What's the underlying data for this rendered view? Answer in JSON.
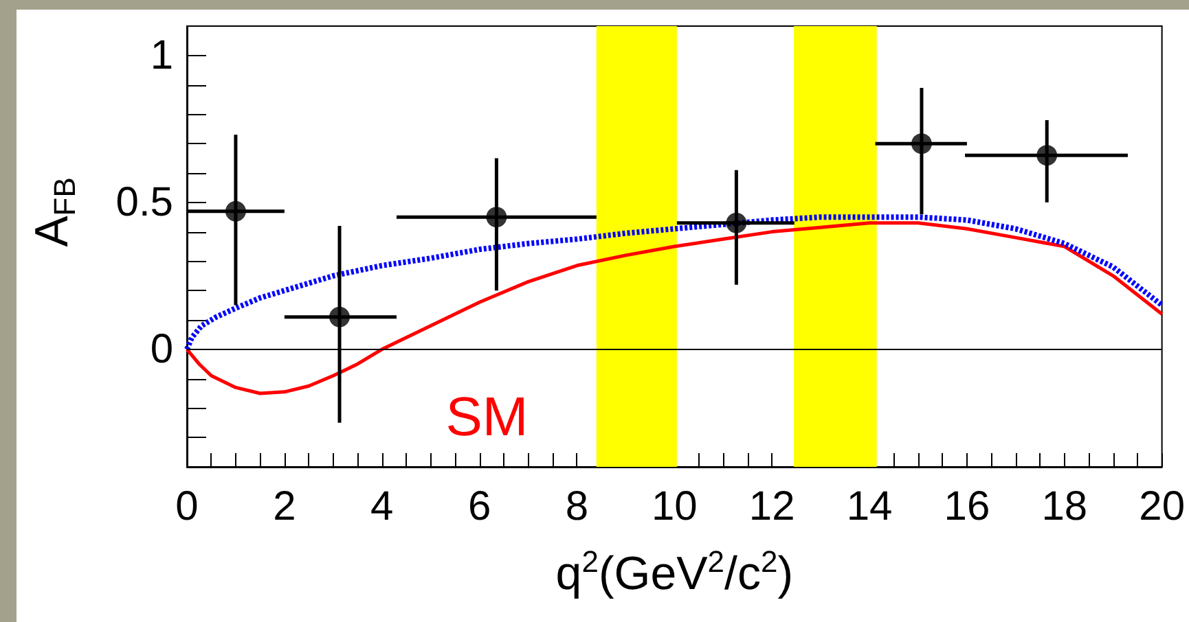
{
  "chart_data": {
    "type": "scatter",
    "xlabel": "q$^{2}$(GeV$^{2}$/c$^{2}$)",
    "ylabel": "A$_{FB}$",
    "xlim": [
      0,
      20
    ],
    "ylim": [
      -0.4,
      1.1
    ],
    "xticks": [
      0,
      {
        "value": 0.5,
        "label": null
      },
      {
        "value": 1,
        "label": null
      },
      {
        "value": 1.5,
        "label": null
      },
      2,
      {
        "value": 2.5,
        "label": null
      },
      {
        "value": 3,
        "label": null
      },
      {
        "value": 3.5,
        "label": null
      },
      4,
      {
        "value": 4.5,
        "label": null
      },
      {
        "value": 5,
        "label": null
      },
      {
        "value": 5.5,
        "label": null
      },
      6,
      {
        "value": 6.5,
        "label": null
      },
      {
        "value": 7,
        "label": null
      },
      {
        "value": 7.5,
        "label": null
      },
      8,
      {
        "value": 8.5,
        "label": null
      },
      {
        "value": 9,
        "label": null
      },
      {
        "value": 9.5,
        "label": null
      },
      10,
      {
        "value": 10.5,
        "label": null
      },
      {
        "value": 11,
        "label": null
      },
      {
        "value": 11.5,
        "label": null
      },
      12,
      {
        "value": 12.5,
        "label": null
      },
      {
        "value": 13,
        "label": null
      },
      {
        "value": 13.5,
        "label": null
      },
      14,
      {
        "value": 14.5,
        "label": null
      },
      {
        "value": 15,
        "label": null
      },
      {
        "value": 15.5,
        "label": null
      },
      16,
      {
        "value": 16.5,
        "label": null
      },
      {
        "value": 17,
        "label": null
      },
      {
        "value": 17.5,
        "label": null
      },
      18,
      {
        "value": 18.5,
        "label": null
      },
      {
        "value": 19,
        "label": null
      },
      {
        "value": 19.5,
        "label": null
      },
      20
    ],
    "yticks": [
      {
        "value": -0.3,
        "label": null
      },
      {
        "value": -0.2,
        "label": null
      },
      {
        "value": -0.1,
        "label": null
      },
      0,
      {
        "value": 0.1,
        "label": null
      },
      {
        "value": 0.2,
        "label": null
      },
      {
        "value": 0.3,
        "label": null
      },
      {
        "value": 0.4,
        "label": null
      },
      0.5,
      {
        "value": 0.6,
        "label": null
      },
      {
        "value": 0.7,
        "label": null
      },
      {
        "value": 0.8,
        "label": null
      },
      {
        "value": 0.9,
        "label": null
      },
      1
    ],
    "grid": false,
    "legend": false,
    "series": [
      {
        "color": "#000000",
        "marker": "circle",
        "x": [
          1.0,
          3.13,
          6.35,
          11.27,
          15.07,
          17.64
        ],
        "values": [
          0.47,
          0.11,
          0.45,
          0.43,
          0.7,
          0.66
        ],
        "errors": [
          [
            0.15,
            0.73
          ],
          [
            -0.25,
            0.42
          ],
          [
            0.2,
            0.65
          ],
          [
            0.22,
            0.61
          ],
          [
            0.46,
            0.89
          ],
          [
            0.5,
            0.78
          ]
        ],
        "xerrors": [
          [
            0,
            2.0
          ],
          [
            2.0,
            4.3
          ],
          [
            4.3,
            8.4
          ],
          [
            10.05,
            12.46
          ],
          [
            14.12,
            16.0
          ],
          [
            15.96,
            19.3
          ]
        ]
      },
      {
        "type": "line",
        "name": "SM",
        "color": "#ff0000",
        "line_style": "solid",
        "marker": "none",
        "x": [
          0,
          0.25,
          0.5,
          1,
          1.5,
          2,
          2.5,
          3,
          3.5,
          4,
          5,
          6,
          7,
          8,
          9,
          10,
          11,
          12,
          13,
          14,
          15,
          16,
          17,
          18,
          19,
          20
        ],
        "values": [
          0,
          -0.05,
          -0.09,
          -0.13,
          -0.15,
          -0.145,
          -0.125,
          -0.09,
          -0.05,
          0,
          0.08,
          0.16,
          0.23,
          0.285,
          0.32,
          0.35,
          0.375,
          0.4,
          0.415,
          0.43,
          0.43,
          0.41,
          0.38,
          0.35,
          0.25,
          0.12
        ]
      },
      {
        "type": "line",
        "color": "#0000ff",
        "line_style": "dotted",
        "marker": "none",
        "x": [
          0,
          0.1,
          0.3,
          0.6,
          1,
          1.5,
          2,
          3,
          4,
          5,
          6,
          7,
          8,
          9,
          10,
          11,
          12,
          13,
          14,
          15,
          16,
          17,
          18,
          19,
          20
        ],
        "values": [
          0,
          0.04,
          0.08,
          0.11,
          0.14,
          0.175,
          0.2,
          0.25,
          0.285,
          0.31,
          0.34,
          0.36,
          0.375,
          0.395,
          0.41,
          0.425,
          0.44,
          0.45,
          0.45,
          0.45,
          0.44,
          0.41,
          0.36,
          0.28,
          0.15
        ]
      }
    ],
    "ref_lines": [
      {
        "axis": "y",
        "value": 0,
        "color": "#000000"
      }
    ],
    "bands": [
      {
        "axis": "x",
        "from": 8.4,
        "to": 10.05,
        "color": "#ffff00"
      },
      {
        "axis": "x",
        "from": 12.45,
        "to": 14.15,
        "color": "#ffff00"
      }
    ]
  }
}
